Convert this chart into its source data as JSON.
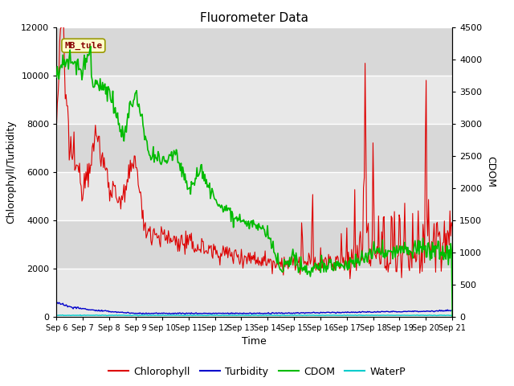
{
  "title": "Fluorometer Data",
  "xlabel": "Time",
  "ylabel_left": "Chlorophyll/Turbidity",
  "ylabel_right": "CDOM",
  "ylim_left": [
    0,
    12000
  ],
  "ylim_right": [
    0,
    4500
  ],
  "yticks_left": [
    0,
    2000,
    4000,
    6000,
    8000,
    10000,
    12000
  ],
  "yticks_right": [
    0,
    500,
    1000,
    1500,
    2000,
    2500,
    3000,
    3500,
    4000,
    4500
  ],
  "xtick_labels": [
    "Sep 6",
    "Sep 7",
    "Sep 8",
    "Sep 9",
    "Sep 10",
    "Sep 11",
    "Sep 12",
    "Sep 13",
    "Sep 14",
    "Sep 15",
    "Sep 16",
    "Sep 17",
    "Sep 18",
    "Sep 19",
    "Sep 20",
    "Sep 21"
  ],
  "colors": {
    "chlorophyll": "#dd0000",
    "turbidity": "#0000cc",
    "cdom": "#00bb00",
    "waterp": "#00cccc"
  },
  "line_widths": {
    "chlorophyll": 0.8,
    "turbidity": 1.0,
    "cdom": 1.2,
    "waterp": 1.0
  },
  "legend_label_box_color": "#ffffcc",
  "legend_label_box_edge": "#999900",
  "legend_label_text": "MB_tule",
  "legend_label_text_color": "#880000",
  "band_colors": [
    "#e8e8e8",
    "#d8d8d8"
  ],
  "plot_bg_color": "#e8e8e8"
}
